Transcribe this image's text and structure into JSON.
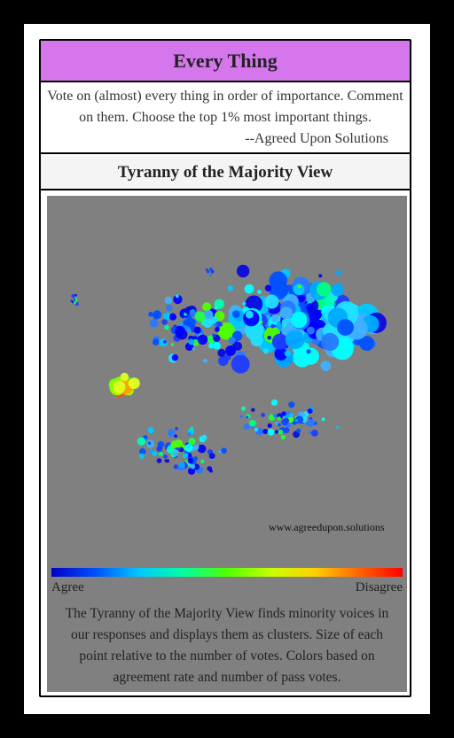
{
  "card": {
    "title": "Every Thing",
    "description": "Vote on (almost) every thing in order of importance. Comment on them. Choose the top 1% most important things.",
    "attribution": "--Agreed Upon Solutions",
    "view_title": "Tyranny of the Majority View",
    "watermark": "www.agreedupon.solutions",
    "legend": {
      "agree_label": "Agree",
      "disagree_label": "Disagree"
    },
    "footer": "The Tyranny of the Majority View finds minority voices in our responses and displays them as clusters. Size of each point relative to the number of votes. Colors based on agreement rate and number of pass votes."
  },
  "colors": {
    "title_bg": "#d676ec",
    "panel_bg": "#808080",
    "scale": [
      "#0000c8",
      "#0050ff",
      "#00c8ff",
      "#00ffa0",
      "#50ff00",
      "#c8ff00",
      "#ffd000",
      "#ff6400",
      "#ff0000"
    ]
  },
  "chart_data": {
    "type": "scatter",
    "title": "",
    "xlabel": "",
    "ylabel": "",
    "grid": false,
    "color_scale": "Agree (blue) to Disagree (red)",
    "clusters": [
      {
        "id": "main-upper",
        "points_approx": 300,
        "dominant_colors": [
          "blue",
          "cyan",
          "light-blue"
        ]
      },
      {
        "id": "left-agree",
        "points_approx": 20,
        "dominant_colors": [
          "yellow-green",
          "orange"
        ]
      },
      {
        "id": "lower",
        "points_approx": 120,
        "dominant_colors": [
          "blue",
          "cyan",
          "green"
        ]
      },
      {
        "id": "outliers-top-left",
        "points_approx": 10,
        "dominant_colors": [
          "blue",
          "green"
        ]
      }
    ]
  }
}
